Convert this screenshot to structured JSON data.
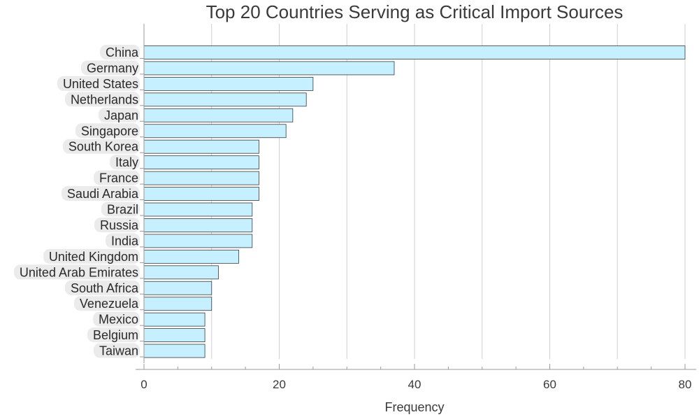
{
  "chart_data": {
    "type": "bar",
    "orientation": "horizontal",
    "title": "Top 20 Countries Serving as Critical Import Sources",
    "xlabel": "Frequency",
    "ylabel": "",
    "xlim": [
      0,
      80
    ],
    "x_ticks": [
      0,
      20,
      40,
      60,
      80
    ],
    "grid": true,
    "bar_color": "#c6efff",
    "bar_edge_color": "#3a3a3a",
    "categories": [
      "China",
      "Germany",
      "United States",
      "Netherlands",
      "Japan",
      "Singapore",
      "South Korea",
      "Italy",
      "France",
      "Saudi Arabia",
      "Brazil",
      "Russia",
      "India",
      "United Kingdom",
      "United Arab Emirates",
      "South Africa",
      "Venezuela",
      "Mexico",
      "Belgium",
      "Taiwan"
    ],
    "values": [
      80,
      37,
      25,
      24,
      22,
      21,
      17,
      17,
      17,
      17,
      16,
      16,
      16,
      14,
      11,
      10,
      10,
      9,
      9,
      9
    ]
  }
}
